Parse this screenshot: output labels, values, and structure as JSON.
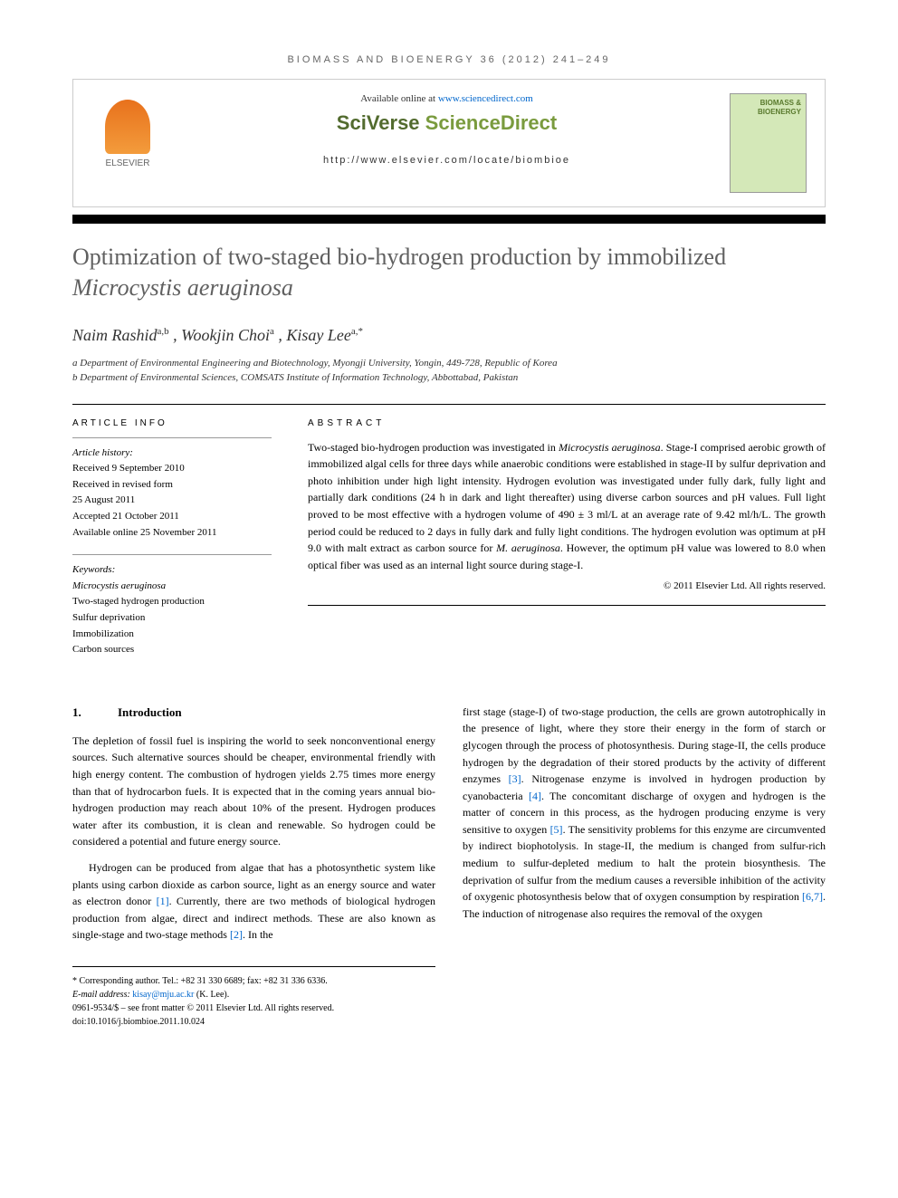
{
  "journal_header": "BIOMASS AND BIOENERGY 36 (2012) 241–249",
  "top_box": {
    "available_prefix": "Available online at ",
    "available_url": "www.sciencedirect.com",
    "sciverse_prefix": "SciVerse ",
    "sciverse_suffix": "ScienceDirect",
    "locate_url": "http://www.elsevier.com/locate/biombioe",
    "elsevier_label": "ELSEVIER",
    "cover_title": "BIOMASS & BIOENERGY"
  },
  "title_part1": "Optimization of two-staged bio-hydrogen production by immobilized ",
  "title_italic": "Microcystis aeruginosa",
  "authors": {
    "a1_name": "Naim Rashid",
    "a1_sup": "a,b",
    "a2_name": ", Wookjin Choi",
    "a2_sup": "a",
    "a3_name": ", Kisay Lee",
    "a3_sup": "a,*"
  },
  "affiliations": {
    "a": "a Department of Environmental Engineering and Biotechnology, Myongji University, Yongin, 449-728, Republic of Korea",
    "b": "b Department of Environmental Sciences, COMSATS Institute of Information Technology, Abbottabad, Pakistan"
  },
  "article_info": {
    "heading": "ARTICLE INFO",
    "history_label": "Article history:",
    "received": "Received 9 September 2010",
    "revised": "Received in revised form",
    "revised_date": "25 August 2011",
    "accepted": "Accepted 21 October 2011",
    "online": "Available online 25 November 2011",
    "keywords_label": "Keywords:",
    "kw1": "Microcystis aeruginosa",
    "kw2": "Two-staged hydrogen production",
    "kw3": "Sulfur deprivation",
    "kw4": "Immobilization",
    "kw5": "Carbon sources"
  },
  "abstract": {
    "heading": "ABSTRACT",
    "p1a": "Two-staged bio-hydrogen production was investigated in ",
    "p1_italic1": "Microcystis aeruginosa",
    "p1b": ". Stage-I comprised aerobic growth of immobilized algal cells for three days while anaerobic conditions were established in stage-II by sulfur deprivation and photo inhibition under high light intensity. Hydrogen evolution was investigated under fully dark, fully light and partially dark conditions (24 h in dark and light thereafter) using diverse carbon sources and pH values. Full light proved to be most effective with a hydrogen volume of 490 ± 3 ml/L at an average rate of 9.42 ml/h/L. The growth period could be reduced to 2 days in fully dark and fully light conditions. The hydrogen evolution was optimum at pH 9.0 with malt extract as carbon source for ",
    "p1_italic2": "M. aeruginosa",
    "p1c": ". However, the optimum pH value was lowered to 8.0 when optical fiber was used as an internal light source during stage-I.",
    "copyright": "© 2011 Elsevier Ltd. All rights reserved."
  },
  "intro": {
    "num": "1.",
    "heading": "Introduction",
    "col1_p1": "The depletion of fossil fuel is inspiring the world to seek nonconventional energy sources. Such alternative sources should be cheaper, environmental friendly with high energy content. The combustion of hydrogen yields 2.75 times more energy than that of hydrocarbon fuels. It is expected that in the coming years annual bio-hydrogen production may reach about 10% of the present. Hydrogen produces water after its combustion, it is clean and renewable. So hydrogen could be considered a potential and future energy source.",
    "col1_p2a": "Hydrogen can be produced from algae that has a photosynthetic system like plants using carbon dioxide as carbon source, light as an energy source and water as electron donor ",
    "col1_p2_ref1": "[1]",
    "col1_p2b": ". Currently, there are two methods of biological hydrogen production from algae, direct and indirect methods. These are also known as single-stage and two-stage methods ",
    "col1_p2_ref2": "[2]",
    "col1_p2c": ". In the",
    "col2_p1a": "first stage (stage-I) of two-stage production, the cells are grown autotrophically in the presence of light, where they store their energy in the form of starch or glycogen through the process of photosynthesis. During stage-II, the cells produce hydrogen by the degradation of their stored products by the activity of different enzymes ",
    "col2_p1_ref3": "[3]",
    "col2_p1b": ". Nitrogenase enzyme is involved in hydrogen production by cyanobacteria ",
    "col2_p1_ref4": "[4]",
    "col2_p1c": ". The concomitant discharge of oxygen and hydrogen is the matter of concern in this process, as the hydrogen producing enzyme is very sensitive to oxygen ",
    "col2_p1_ref5": "[5]",
    "col2_p1d": ". The sensitivity problems for this enzyme are circumvented by indirect biophotolysis. In stage-II, the medium is changed from sulfur-rich medium to sulfur-depleted medium to halt the protein biosynthesis. The deprivation of sulfur from the medium causes a reversible inhibition of the activity of oxygenic photosynthesis below that of oxygen consumption by respiration ",
    "col2_p1_ref67": "[6,7]",
    "col2_p1e": ". The induction of nitrogenase also requires the removal of the oxygen"
  },
  "footer": {
    "corresponding": "* Corresponding author. Tel.: +82 31 330 6689; fax: +82 31 336 6336.",
    "email_label": "E-mail address: ",
    "email": "kisay@mju.ac.kr",
    "email_suffix": " (K. Lee).",
    "issn": "0961-9534/$ – see front matter © 2011 Elsevier Ltd. All rights reserved.",
    "doi": "doi:10.1016/j.biombioe.2011.10.024"
  }
}
